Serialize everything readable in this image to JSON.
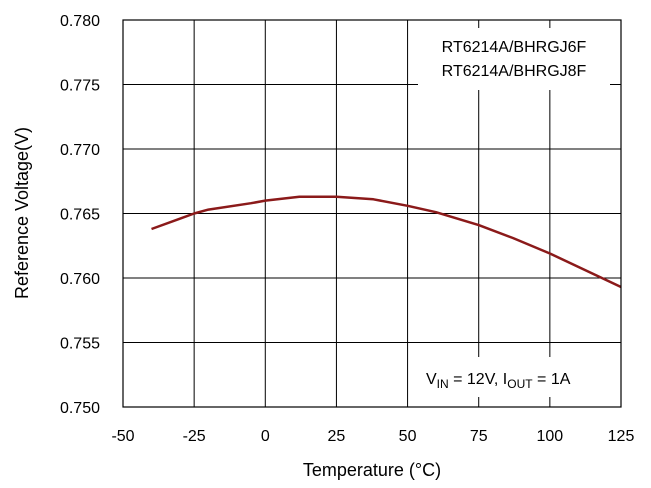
{
  "chart_data": {
    "type": "line",
    "title": "",
    "xlabel": "Temperature (°C)",
    "ylabel": "Reference Voltage(V)",
    "xlim": [
      -50,
      125
    ],
    "ylim": [
      0.75,
      0.78
    ],
    "x_ticks": [
      "-50",
      "-25",
      "0",
      "25",
      "50",
      "75",
      "100",
      "125"
    ],
    "y_ticks": [
      "0.750",
      "0.755",
      "0.760",
      "0.765",
      "0.770",
      "0.775",
      "0.780"
    ],
    "grid": true,
    "series": [
      {
        "color": "#8b1a1a",
        "x": [
          -40,
          -30,
          -25,
          -20,
          -5,
          0,
          12,
          25,
          38,
          50,
          60,
          75,
          87,
          100,
          125
        ],
        "y": [
          0.7638,
          0.7646,
          0.765,
          0.7653,
          0.7658,
          0.766,
          0.7663,
          0.7663,
          0.7661,
          0.7656,
          0.7651,
          0.7641,
          0.7631,
          0.7619,
          0.7593
        ]
      }
    ],
    "legend_lines": [
      "RT6214A/BHRGJ6F",
      "RT6214A/BHRGJ8F"
    ],
    "annotation": {
      "vin_label": "V",
      "vin_sub": "IN",
      "vin_value": " = 12V, ",
      "iout_label": "I",
      "iout_sub": "OUT",
      "iout_value": " = 1A"
    }
  }
}
